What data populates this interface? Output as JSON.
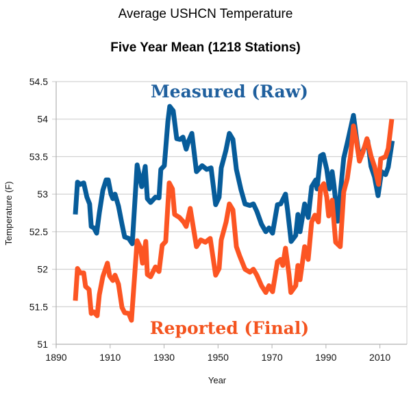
{
  "chart_data": {
    "type": "line",
    "title": "Average USHCN Temperature",
    "subtitle": "Five Year Mean (1218 Stations)",
    "xlabel": "Year",
    "ylabel": "Temperature (F)",
    "xlim": [
      1890,
      2020
    ],
    "ylim": [
      51,
      54.5
    ],
    "x_ticks": [
      1890,
      1910,
      1930,
      1950,
      1970,
      1990,
      2010
    ],
    "x_tick_labels": [
      "1890",
      "1910",
      "1930",
      "1950",
      "1970",
      "1990",
      "2010"
    ],
    "y_ticks": [
      51,
      51.5,
      52,
      52.5,
      53,
      53.5,
      54,
      54.5
    ],
    "y_tick_labels": [
      "51",
      "51.5",
      "52",
      "52.5",
      "53",
      "53.5",
      "54",
      "54.5"
    ],
    "grid": "horizontal",
    "annotations": [
      {
        "text": "Measured (Raw)",
        "series": "Measured (Raw)",
        "position": "top-center"
      },
      {
        "text": "Reported (Final)",
        "series": "Reported (Final)",
        "position": "bottom-center"
      }
    ],
    "series": [
      {
        "name": "Measured (Raw)",
        "color": "#075c9a",
        "points": [
          [
            1897.1,
            52.73
          ],
          [
            1897.9,
            53.16
          ],
          [
            1898.9,
            53.13
          ],
          [
            1900.2,
            53.15
          ],
          [
            1901.4,
            52.96
          ],
          [
            1902.4,
            52.87
          ],
          [
            1903.0,
            52.57
          ],
          [
            1904.0,
            52.55
          ],
          [
            1905.0,
            52.48
          ],
          [
            1906.0,
            52.75
          ],
          [
            1907.3,
            53.05
          ],
          [
            1908.5,
            53.19
          ],
          [
            1909.3,
            53.19
          ],
          [
            1910.3,
            53.0
          ],
          [
            1911.0,
            52.94
          ],
          [
            1911.8,
            53.0
          ],
          [
            1913.1,
            52.84
          ],
          [
            1914.4,
            52.6
          ],
          [
            1915.4,
            52.43
          ],
          [
            1916.9,
            52.41
          ],
          [
            1918.2,
            52.34
          ],
          [
            1920.0,
            53.39
          ],
          [
            1921.7,
            53.1
          ],
          [
            1923.0,
            53.37
          ],
          [
            1923.8,
            52.94
          ],
          [
            1925.0,
            52.89
          ],
          [
            1926.8,
            52.96
          ],
          [
            1928.1,
            52.95
          ],
          [
            1928.8,
            53.33
          ],
          [
            1930.1,
            53.38
          ],
          [
            1931.4,
            53.97
          ],
          [
            1932.1,
            54.17
          ],
          [
            1933.4,
            54.11
          ],
          [
            1934.7,
            53.74
          ],
          [
            1935.9,
            53.73
          ],
          [
            1937.0,
            53.76
          ],
          [
            1938.2,
            53.6
          ],
          [
            1939.0,
            53.7
          ],
          [
            1940.3,
            53.81
          ],
          [
            1942.0,
            53.3
          ],
          [
            1944.1,
            53.38
          ],
          [
            1945.8,
            53.33
          ],
          [
            1947.4,
            53.35
          ],
          [
            1949.1,
            52.86
          ],
          [
            1950.4,
            52.96
          ],
          [
            1951.2,
            53.35
          ],
          [
            1952.9,
            53.58
          ],
          [
            1954.2,
            53.81
          ],
          [
            1955.5,
            53.73
          ],
          [
            1956.8,
            53.33
          ],
          [
            1958.5,
            53.06
          ],
          [
            1960.0,
            52.87
          ],
          [
            1961.8,
            52.85
          ],
          [
            1963.1,
            52.87
          ],
          [
            1964.4,
            52.77
          ],
          [
            1966.1,
            52.6
          ],
          [
            1967.7,
            52.5
          ],
          [
            1968.9,
            52.55
          ],
          [
            1970.2,
            52.48
          ],
          [
            1972.0,
            52.86
          ],
          [
            1973.2,
            52.87
          ],
          [
            1975.0,
            53.0
          ],
          [
            1975.8,
            52.78
          ],
          [
            1977.1,
            52.37
          ],
          [
            1978.8,
            52.45
          ],
          [
            1979.6,
            52.73
          ],
          [
            1980.4,
            52.5
          ],
          [
            1982.1,
            52.87
          ],
          [
            1983.4,
            52.69
          ],
          [
            1984.7,
            53.1
          ],
          [
            1986.2,
            53.19
          ],
          [
            1986.7,
            53.07
          ],
          [
            1988.0,
            53.51
          ],
          [
            1989.0,
            53.53
          ],
          [
            1990.3,
            53.33
          ],
          [
            1991.3,
            53.07
          ],
          [
            1992.3,
            53.3
          ],
          [
            1993.0,
            53.11
          ],
          [
            1994.3,
            52.64
          ],
          [
            1995.3,
            53.0
          ],
          [
            1996.6,
            53.48
          ],
          [
            1998.1,
            53.71
          ],
          [
            2000.2,
            54.05
          ],
          [
            2001.4,
            53.73
          ],
          [
            2002.4,
            53.47
          ],
          [
            2004.2,
            53.62
          ],
          [
            2005.5,
            53.71
          ],
          [
            2006.7,
            53.37
          ],
          [
            2008.0,
            53.23
          ],
          [
            2009.3,
            52.98
          ],
          [
            2010.6,
            53.3
          ],
          [
            2012.1,
            53.26
          ],
          [
            2013.1,
            53.36
          ],
          [
            2014.6,
            53.71
          ]
        ]
      },
      {
        "name": "Reported (Final)",
        "color": "#fc5523",
        "points": [
          [
            1897.1,
            51.58
          ],
          [
            1897.9,
            52.01
          ],
          [
            1898.9,
            51.95
          ],
          [
            1900.2,
            51.95
          ],
          [
            1900.9,
            51.77
          ],
          [
            1902.2,
            51.73
          ],
          [
            1903.0,
            51.41
          ],
          [
            1904.0,
            51.43
          ],
          [
            1905.2,
            51.38
          ],
          [
            1906.0,
            51.66
          ],
          [
            1907.3,
            51.9
          ],
          [
            1909.0,
            52.08
          ],
          [
            1909.8,
            51.91
          ],
          [
            1911.0,
            51.85
          ],
          [
            1911.8,
            51.92
          ],
          [
            1913.1,
            51.8
          ],
          [
            1914.4,
            51.49
          ],
          [
            1915.4,
            51.42
          ],
          [
            1916.9,
            51.41
          ],
          [
            1917.9,
            51.32
          ],
          [
            1920.0,
            52.38
          ],
          [
            1921.2,
            52.29
          ],
          [
            1922.0,
            52.08
          ],
          [
            1923.2,
            52.37
          ],
          [
            1923.8,
            51.93
          ],
          [
            1925.0,
            51.9
          ],
          [
            1926.8,
            52.03
          ],
          [
            1928.1,
            51.97
          ],
          [
            1929.3,
            52.32
          ],
          [
            1930.6,
            52.37
          ],
          [
            1931.9,
            53.15
          ],
          [
            1933.1,
            53.07
          ],
          [
            1933.9,
            52.73
          ],
          [
            1935.7,
            52.69
          ],
          [
            1937.2,
            52.63
          ],
          [
            1938.2,
            52.57
          ],
          [
            1939.7,
            52.81
          ],
          [
            1942.0,
            52.3
          ],
          [
            1943.6,
            52.39
          ],
          [
            1945.3,
            52.36
          ],
          [
            1947.1,
            52.41
          ],
          [
            1949.1,
            51.92
          ],
          [
            1950.4,
            52.01
          ],
          [
            1951.2,
            52.39
          ],
          [
            1953.0,
            52.63
          ],
          [
            1954.2,
            52.87
          ],
          [
            1955.5,
            52.79
          ],
          [
            1956.8,
            52.3
          ],
          [
            1958.0,
            52.18
          ],
          [
            1960.0,
            52.0
          ],
          [
            1961.8,
            51.96
          ],
          [
            1963.1,
            52.0
          ],
          [
            1964.4,
            51.92
          ],
          [
            1966.1,
            51.78
          ],
          [
            1967.7,
            51.69
          ],
          [
            1968.9,
            51.78
          ],
          [
            1970.2,
            51.7
          ],
          [
            1972.0,
            52.1
          ],
          [
            1973.2,
            52.13
          ],
          [
            1974.0,
            52.05
          ],
          [
            1975.0,
            52.28
          ],
          [
            1976.3,
            51.93
          ],
          [
            1977.0,
            51.69
          ],
          [
            1978.8,
            51.78
          ],
          [
            1979.6,
            52.05
          ],
          [
            1980.4,
            51.86
          ],
          [
            1982.1,
            52.3
          ],
          [
            1983.4,
            52.13
          ],
          [
            1984.7,
            52.63
          ],
          [
            1985.9,
            52.72
          ],
          [
            1987.2,
            52.63
          ],
          [
            1988.0,
            53.08
          ],
          [
            1989.2,
            53.14
          ],
          [
            1990.3,
            52.96
          ],
          [
            1991.0,
            52.71
          ],
          [
            1992.3,
            52.92
          ],
          [
            1993.6,
            52.36
          ],
          [
            1995.3,
            52.3
          ],
          [
            1996.6,
            53.03
          ],
          [
            1997.9,
            53.21
          ],
          [
            1999.1,
            53.51
          ],
          [
            2000.2,
            53.91
          ],
          [
            2001.2,
            53.73
          ],
          [
            2002.4,
            53.44
          ],
          [
            2003.7,
            53.56
          ],
          [
            2005.2,
            53.74
          ],
          [
            2006.7,
            53.51
          ],
          [
            2008.0,
            53.37
          ],
          [
            2009.5,
            53.13
          ],
          [
            2010.3,
            53.47
          ],
          [
            2012.1,
            53.5
          ],
          [
            2013.1,
            53.61
          ],
          [
            2014.4,
            54.0
          ]
        ]
      }
    ]
  },
  "style": {
    "grid_color": "#c8c8c8",
    "axis_color": "#b0b0b0",
    "measured_label_color": "#20609e",
    "reported_label_color": "#f4541f"
  }
}
